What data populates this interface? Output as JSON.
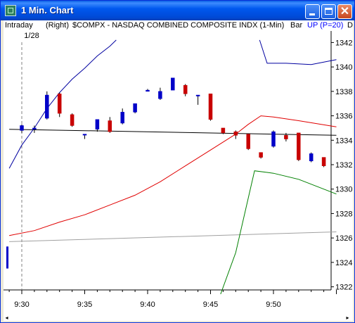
{
  "window": {
    "title": "1 Min. Chart",
    "icon": "chart-app-icon"
  },
  "infobar": {
    "period": "Intraday",
    "axis": "(Right)",
    "symbol": "$COMPX - NASDAQ COMBINED COMPOSITE INDX (1-Min)",
    "style": "Bar",
    "study": "UP (P=20)",
    "study_color": "#0000ff",
    "extra": "D"
  },
  "chart_data": {
    "type": "candlestick",
    "date_label": "1/28",
    "x_ticks": [
      "9:30",
      "9:35",
      "9:40",
      "9:45",
      "9:50"
    ],
    "y_ticks": [
      1342,
      1340,
      1338,
      1336,
      1334,
      1332,
      1330,
      1328,
      1326,
      1324,
      1322
    ],
    "ylim": [
      1321.4,
      1342.6
    ],
    "up_color": "#0000c8",
    "down_color": "#c80000",
    "candles": [
      {
        "t": "9:30",
        "o": 1334.8,
        "h": 1335.3,
        "l": 1334.6,
        "c": 1335.2
      },
      {
        "t": "9:31",
        "o": 1334.9,
        "h": 1335.2,
        "l": 1334.6,
        "c": 1335.0
      },
      {
        "t": "9:32",
        "o": 1335.8,
        "h": 1338.0,
        "l": 1335.7,
        "c": 1337.7
      },
      {
        "t": "9:33",
        "o": 1337.8,
        "h": 1337.9,
        "l": 1335.9,
        "c": 1336.2
      },
      {
        "t": "9:34",
        "o": 1336.1,
        "h": 1336.2,
        "l": 1335.1,
        "c": 1335.2
      },
      {
        "t": "9:35",
        "o": 1334.5,
        "h": 1334.5,
        "l": 1334.1,
        "c": 1334.5
      },
      {
        "t": "9:36",
        "o": 1334.9,
        "h": 1335.5,
        "l": 1334.7,
        "c": 1335.7
      },
      {
        "t": "9:37",
        "o": 1335.6,
        "h": 1335.9,
        "l": 1334.6,
        "c": 1334.7
      },
      {
        "t": "9:38",
        "o": 1335.4,
        "h": 1336.6,
        "l": 1335.3,
        "c": 1336.3
      },
      {
        "t": "9:39",
        "o": 1336.3,
        "h": 1337.0,
        "l": 1336.2,
        "c": 1337.0
      },
      {
        "t": "9:40",
        "o": 1338.0,
        "h": 1338.2,
        "l": 1338.0,
        "c": 1338.1
      },
      {
        "t": "9:41",
        "o": 1337.4,
        "h": 1338.3,
        "l": 1337.3,
        "c": 1338.0
      },
      {
        "t": "9:42",
        "o": 1338.1,
        "h": 1339.1,
        "l": 1338.1,
        "c": 1339.1
      },
      {
        "t": "9:43",
        "o": 1338.5,
        "h": 1338.6,
        "l": 1337.6,
        "c": 1337.8
      },
      {
        "t": "9:44",
        "o": 1337.7,
        "h": 1337.7,
        "l": 1336.9,
        "c": 1337.7
      },
      {
        "t": "9:45",
        "o": 1337.8,
        "h": 1337.8,
        "l": 1335.6,
        "c": 1335.7
      },
      {
        "t": "9:46",
        "o": 1335.0,
        "h": 1335.0,
        "l": 1334.5,
        "c": 1334.6
      },
      {
        "t": "9:47",
        "o": 1334.7,
        "h": 1334.8,
        "l": 1334.1,
        "c": 1334.4
      },
      {
        "t": "9:48",
        "o": 1334.5,
        "h": 1334.5,
        "l": 1333.2,
        "c": 1333.3
      },
      {
        "t": "9:49",
        "o": 1333.0,
        "h": 1333.0,
        "l": 1332.5,
        "c": 1332.6
      },
      {
        "t": "9:50",
        "o": 1333.5,
        "h": 1334.8,
        "l": 1333.4,
        "c": 1334.7
      },
      {
        "t": "9:51",
        "o": 1334.4,
        "h": 1334.6,
        "l": 1333.9,
        "c": 1334.1
      },
      {
        "t": "9:52",
        "o": 1334.6,
        "h": 1334.6,
        "l": 1332.3,
        "c": 1332.4
      },
      {
        "t": "9:53",
        "o": 1332.3,
        "h": 1333.0,
        "l": 1332.2,
        "c": 1332.9
      },
      {
        "t": "9:54",
        "o": 1332.6,
        "h": 1332.6,
        "l": 1331.8,
        "c": 1331.9
      }
    ],
    "early_bar": {
      "t": "9:28",
      "o": 1323.5,
      "h": 1325.3,
      "l": 1323.4,
      "c": 1325.3
    },
    "lines": [
      {
        "color": "#000000",
        "points": [
          [
            -1,
            1334.9
          ],
          [
            25,
            1334.4
          ]
        ]
      },
      {
        "color": "#a0a0a0",
        "points": [
          [
            -1,
            1325.7
          ],
          [
            25,
            1326.5
          ]
        ]
      },
      {
        "color": "#e00000",
        "points": [
          [
            -1,
            1326.2
          ],
          [
            1,
            1326.6
          ],
          [
            3,
            1327.3
          ],
          [
            5,
            1327.9
          ],
          [
            7,
            1328.7
          ],
          [
            9,
            1329.5
          ],
          [
            11,
            1330.6
          ],
          [
            13,
            1331.9
          ],
          [
            15,
            1333.2
          ],
          [
            17,
            1334.5
          ],
          [
            18,
            1335.3
          ],
          [
            19,
            1336.0
          ],
          [
            20,
            1335.9
          ],
          [
            22,
            1335.6
          ],
          [
            25,
            1335.1
          ]
        ]
      },
      {
        "color": "#0000a0",
        "points": [
          [
            -1,
            1331.7
          ],
          [
            0,
            1333.6
          ],
          [
            1,
            1335.0
          ],
          [
            2,
            1336.6
          ],
          [
            3,
            1337.9
          ],
          [
            4,
            1339.0
          ],
          [
            5,
            1339.9
          ],
          [
            6,
            1340.9
          ],
          [
            7,
            1341.7
          ],
          [
            7.5,
            1342.2
          ]
        ]
      },
      {
        "color": "#0000a0",
        "points": [
          [
            18.9,
            1342.2
          ],
          [
            19.5,
            1340.3
          ],
          [
            21,
            1340.3
          ],
          [
            23,
            1340.2
          ],
          [
            25,
            1340.6
          ]
        ]
      },
      {
        "color": "#008000",
        "points": [
          [
            15.8,
            1321.4
          ],
          [
            17,
            1324.8
          ],
          [
            18.5,
            1331.5
          ],
          [
            20,
            1331.3
          ],
          [
            22,
            1330.8
          ],
          [
            25,
            1329.6
          ]
        ]
      }
    ],
    "vline_at": "9:30"
  }
}
